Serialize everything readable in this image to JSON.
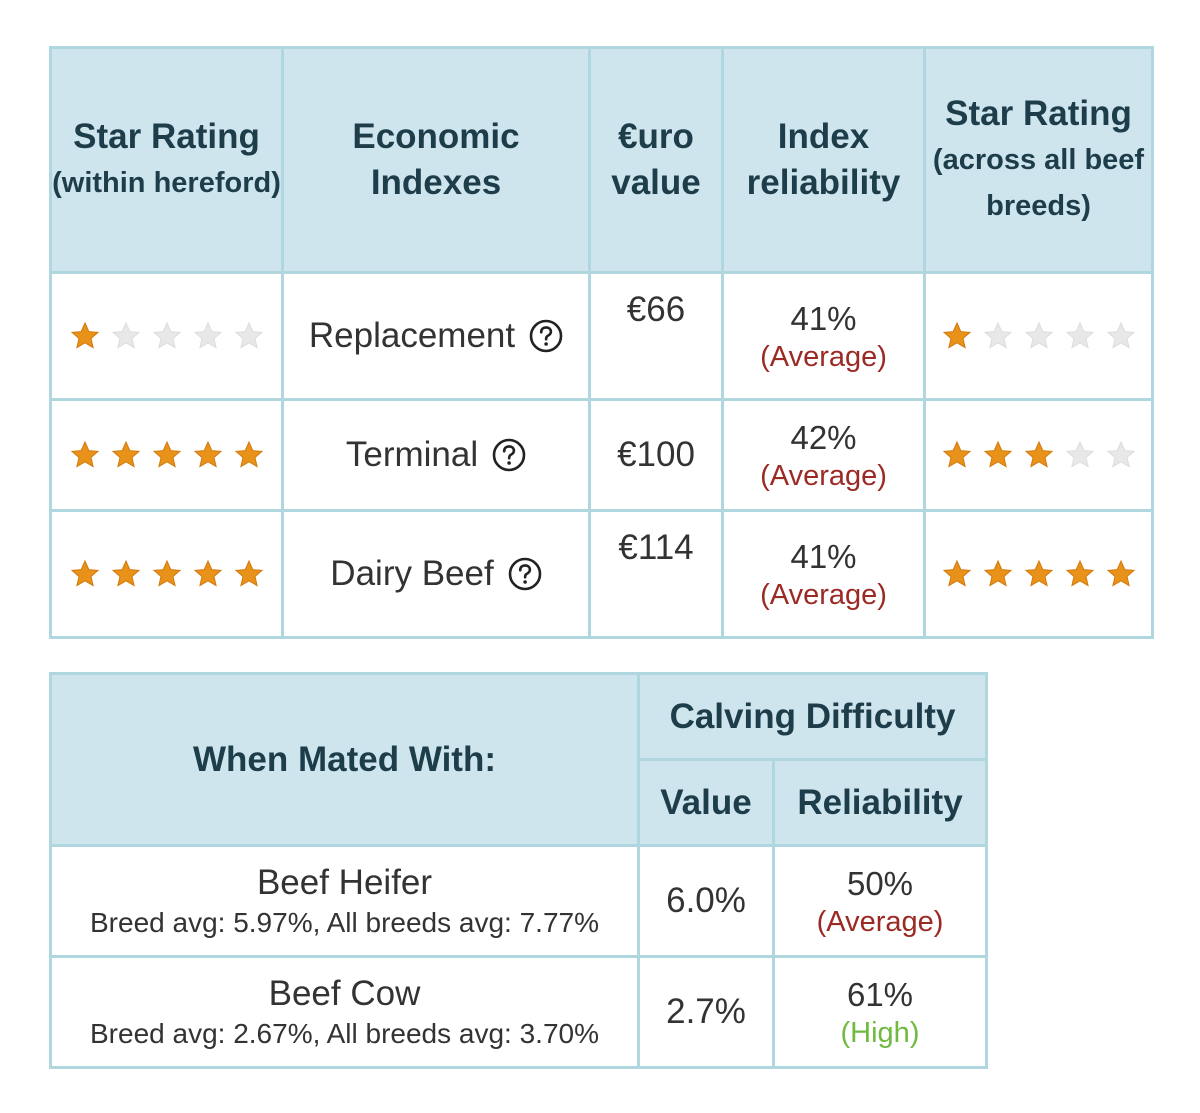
{
  "economic_table": {
    "headers": {
      "star_within": {
        "main": "Star Rating",
        "sub": "(within hereford)"
      },
      "indexes": "Economic Indexes",
      "euro_value": "€uro value",
      "reliability": "Index reliability",
      "star_across": {
        "main": "Star Rating",
        "sub": "(across all beef breeds)"
      }
    },
    "rows": [
      {
        "index": "Replacement",
        "stars_within": 1,
        "value": "€66",
        "reliability_pct": "41%",
        "reliability_level": "(Average)",
        "stars_across": 1
      },
      {
        "index": "Terminal",
        "stars_within": 5,
        "value": "€100",
        "reliability_pct": "42%",
        "reliability_level": "(Average)",
        "stars_across": 3
      },
      {
        "index": "Dairy Beef",
        "stars_within": 5,
        "value": "€114",
        "reliability_pct": "41%",
        "reliability_level": "(Average)",
        "stars_across": 5
      }
    ],
    "max_stars": 5,
    "colors": {
      "star_on": "#e8921a",
      "star_off": "#e8e8e8",
      "average": "#9b2a24",
      "high": "#6fba3f"
    }
  },
  "calving_table": {
    "headers": {
      "mated_with": "When Mated With:",
      "calving_difficulty": "Calving Difficulty",
      "value": "Value",
      "reliability": "Reliability"
    },
    "rows": [
      {
        "name": "Beef Heifer",
        "averages": "Breed avg: 5.97%, All breeds avg: 7.77%",
        "value": "6.0%",
        "reliability_pct": "50%",
        "reliability_level": "(Average)"
      },
      {
        "name": "Beef Cow",
        "averages": "Breed avg: 2.67%, All breeds avg: 3.70%",
        "value": "2.7%",
        "reliability_pct": "61%",
        "reliability_level": "(High)"
      }
    ]
  }
}
